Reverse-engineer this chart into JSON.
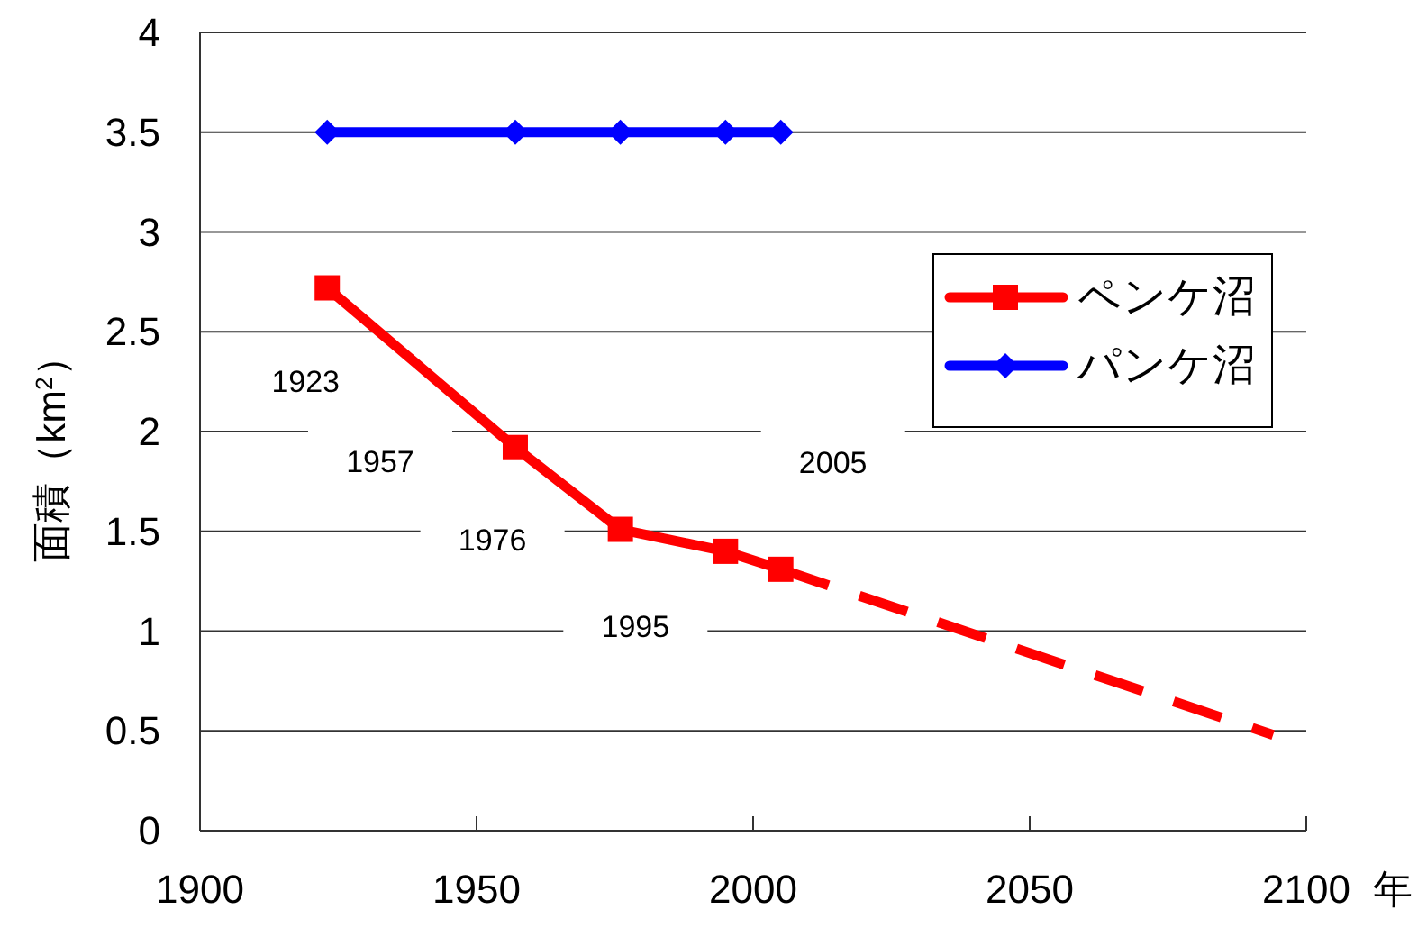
{
  "chart_data": {
    "type": "line",
    "xlabel": "年",
    "ylabel": "面積（km$^{2}$）",
    "xlim": [
      1900,
      2100
    ],
    "xticks": [
      1900,
      1950,
      2000,
      2050,
      2100
    ],
    "ylim": [
      0,
      4
    ],
    "yticks": [
      0,
      0.5,
      1,
      1.5,
      2,
      2.5,
      3,
      3.5,
      4
    ],
    "grid": "y",
    "legend": "top right",
    "series": [
      {
        "name": "ペンケ沼",
        "color": "#ff0000",
        "marker": "square",
        "line_style": "solid",
        "x": [
          1923,
          1957,
          1976,
          1995,
          2005
        ],
        "values": [
          2.72,
          1.92,
          1.51,
          1.4,
          1.31
        ]
      },
      {
        "name": "パンケ沼",
        "color": "#0000ff",
        "marker": "diamond",
        "line_style": "solid",
        "x": [
          1923,
          1957,
          1976,
          1995,
          2005
        ],
        "values": [
          3.5,
          3.5,
          3.5,
          3.5,
          3.5
        ]
      },
      {
        "color": "#ff0000",
        "marker": "none",
        "line_style": "dashed",
        "x": [
          2005,
          2094
        ],
        "values": [
          1.31,
          0.48
        ]
      }
    ],
    "annotations": [
      "1923",
      "1957",
      "1976",
      "1995",
      "2005"
    ]
  }
}
